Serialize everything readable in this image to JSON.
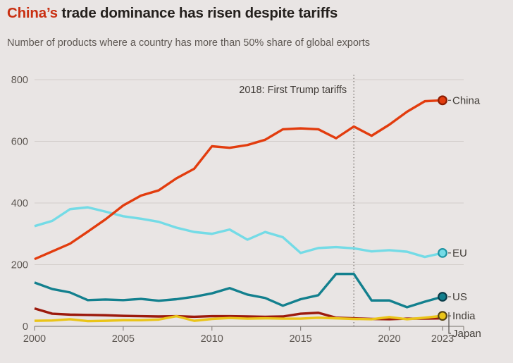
{
  "header": {
    "title_highlight": "China’s",
    "title_rest": " trade dominance has risen despite tariffs",
    "subtitle": "Number of products where a country has more than 50% share of global exports"
  },
  "colors": {
    "background": "#e9e5e4",
    "grid": "#d2cdca",
    "axis": "#8c8681",
    "tick_text": "#5d5752",
    "series_label_text": "#423d38",
    "annotation_text": "#3e3935",
    "annotation_line": "#7c7672",
    "leader_line": "#55504b",
    "title_highlight": "#c92f11"
  },
  "chart_data": {
    "type": "line",
    "title": "China’s trade dominance has risen despite tariffs",
    "subtitle": "Number of products where a country has more than 50% share of global exports",
    "x": [
      2000,
      2001,
      2002,
      2003,
      2004,
      2005,
      2006,
      2007,
      2008,
      2009,
      2010,
      2011,
      2012,
      2013,
      2014,
      2015,
      2016,
      2017,
      2018,
      2019,
      2020,
      2021,
      2022,
      2023
    ],
    "xticks": [
      2000,
      2005,
      2010,
      2015,
      2020,
      2023
    ],
    "yticks": [
      0,
      200,
      400,
      600,
      800
    ],
    "ylim": [
      0,
      800
    ],
    "grid": true,
    "legend_position": "right-of-line-ends",
    "annotation": {
      "text": "2018: First Trump tariffs",
      "x": 2018
    },
    "series": [
      {
        "name": "Japan",
        "label": "Japan",
        "color": "#9c1a0c",
        "edge": "#4a0d04",
        "marker": false,
        "values": [
          58,
          41,
          38,
          37,
          36,
          34,
          33,
          32,
          33,
          31,
          33,
          33,
          32,
          31,
          32,
          41,
          44,
          28,
          26,
          24,
          23,
          25,
          25,
          26
        ]
      },
      {
        "name": "India",
        "label": "India",
        "color": "#eac418",
        "edge": "#564410",
        "marker": true,
        "values": [
          18,
          19,
          23,
          17,
          18,
          20,
          20,
          22,
          33,
          18,
          24,
          27,
          25,
          26,
          25,
          25,
          28,
          26,
          24,
          23,
          30,
          23,
          28,
          34
        ]
      },
      {
        "name": "US",
        "label": "US",
        "color": "#13808e",
        "edge": "#0b3a47",
        "marker": true,
        "values": [
          142,
          121,
          110,
          85,
          87,
          85,
          89,
          83,
          88,
          96,
          107,
          124,
          103,
          92,
          67,
          88,
          101,
          170,
          170,
          84,
          84,
          62,
          80,
          96
        ]
      },
      {
        "name": "EU",
        "label": "EU",
        "color": "#74dbe6",
        "edge": "#1b93a2",
        "marker": true,
        "values": [
          325,
          342,
          380,
          386,
          372,
          357,
          349,
          339,
          320,
          306,
          300,
          314,
          281,
          306,
          289,
          238,
          254,
          257,
          253,
          243,
          247,
          242,
          225,
          238
        ]
      },
      {
        "name": "China",
        "label": "China",
        "color": "#e23c0e",
        "edge": "#8c1d02",
        "marker": true,
        "values": [
          218,
          243,
          268,
          307,
          347,
          392,
          424,
          441,
          480,
          511,
          584,
          579,
          588,
          605,
          639,
          642,
          639,
          610,
          648,
          618,
          654,
          696,
          730,
          733
        ]
      }
    ]
  }
}
